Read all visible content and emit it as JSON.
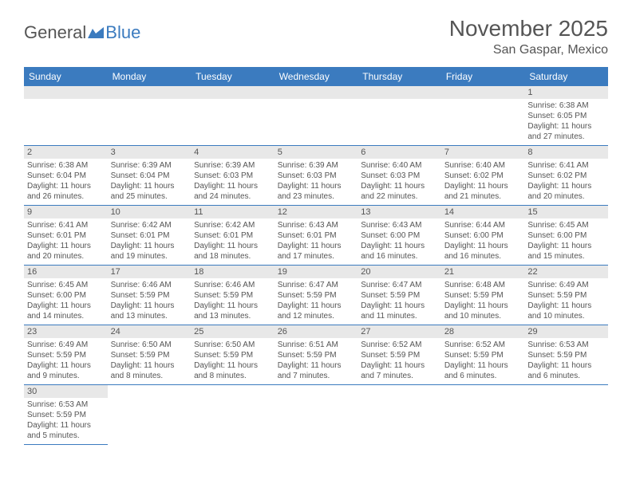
{
  "logo": {
    "part1": "General",
    "part2": "Blue"
  },
  "title": "November 2025",
  "location": "San Gaspar, Mexico",
  "colors": {
    "header_bg": "#3b7bbf",
    "header_text": "#ffffff",
    "daynum_bg": "#e8e8e8",
    "text": "#555555",
    "row_border": "#3b7bbf",
    "logo_gray": "#555555",
    "logo_blue": "#3b7bbf",
    "page_bg": "#ffffff"
  },
  "day_headers": [
    "Sunday",
    "Monday",
    "Tuesday",
    "Wednesday",
    "Thursday",
    "Friday",
    "Saturday"
  ],
  "weeks": [
    [
      {
        "blank": true
      },
      {
        "blank": true
      },
      {
        "blank": true
      },
      {
        "blank": true
      },
      {
        "blank": true
      },
      {
        "blank": true
      },
      {
        "num": "1",
        "sunrise": "Sunrise: 6:38 AM",
        "sunset": "Sunset: 6:05 PM",
        "daylight1": "Daylight: 11 hours",
        "daylight2": "and 27 minutes."
      }
    ],
    [
      {
        "num": "2",
        "sunrise": "Sunrise: 6:38 AM",
        "sunset": "Sunset: 6:04 PM",
        "daylight1": "Daylight: 11 hours",
        "daylight2": "and 26 minutes."
      },
      {
        "num": "3",
        "sunrise": "Sunrise: 6:39 AM",
        "sunset": "Sunset: 6:04 PM",
        "daylight1": "Daylight: 11 hours",
        "daylight2": "and 25 minutes."
      },
      {
        "num": "4",
        "sunrise": "Sunrise: 6:39 AM",
        "sunset": "Sunset: 6:03 PM",
        "daylight1": "Daylight: 11 hours",
        "daylight2": "and 24 minutes."
      },
      {
        "num": "5",
        "sunrise": "Sunrise: 6:39 AM",
        "sunset": "Sunset: 6:03 PM",
        "daylight1": "Daylight: 11 hours",
        "daylight2": "and 23 minutes."
      },
      {
        "num": "6",
        "sunrise": "Sunrise: 6:40 AM",
        "sunset": "Sunset: 6:03 PM",
        "daylight1": "Daylight: 11 hours",
        "daylight2": "and 22 minutes."
      },
      {
        "num": "7",
        "sunrise": "Sunrise: 6:40 AM",
        "sunset": "Sunset: 6:02 PM",
        "daylight1": "Daylight: 11 hours",
        "daylight2": "and 21 minutes."
      },
      {
        "num": "8",
        "sunrise": "Sunrise: 6:41 AM",
        "sunset": "Sunset: 6:02 PM",
        "daylight1": "Daylight: 11 hours",
        "daylight2": "and 20 minutes."
      }
    ],
    [
      {
        "num": "9",
        "sunrise": "Sunrise: 6:41 AM",
        "sunset": "Sunset: 6:01 PM",
        "daylight1": "Daylight: 11 hours",
        "daylight2": "and 20 minutes."
      },
      {
        "num": "10",
        "sunrise": "Sunrise: 6:42 AM",
        "sunset": "Sunset: 6:01 PM",
        "daylight1": "Daylight: 11 hours",
        "daylight2": "and 19 minutes."
      },
      {
        "num": "11",
        "sunrise": "Sunrise: 6:42 AM",
        "sunset": "Sunset: 6:01 PM",
        "daylight1": "Daylight: 11 hours",
        "daylight2": "and 18 minutes."
      },
      {
        "num": "12",
        "sunrise": "Sunrise: 6:43 AM",
        "sunset": "Sunset: 6:01 PM",
        "daylight1": "Daylight: 11 hours",
        "daylight2": "and 17 minutes."
      },
      {
        "num": "13",
        "sunrise": "Sunrise: 6:43 AM",
        "sunset": "Sunset: 6:00 PM",
        "daylight1": "Daylight: 11 hours",
        "daylight2": "and 16 minutes."
      },
      {
        "num": "14",
        "sunrise": "Sunrise: 6:44 AM",
        "sunset": "Sunset: 6:00 PM",
        "daylight1": "Daylight: 11 hours",
        "daylight2": "and 16 minutes."
      },
      {
        "num": "15",
        "sunrise": "Sunrise: 6:45 AM",
        "sunset": "Sunset: 6:00 PM",
        "daylight1": "Daylight: 11 hours",
        "daylight2": "and 15 minutes."
      }
    ],
    [
      {
        "num": "16",
        "sunrise": "Sunrise: 6:45 AM",
        "sunset": "Sunset: 6:00 PM",
        "daylight1": "Daylight: 11 hours",
        "daylight2": "and 14 minutes."
      },
      {
        "num": "17",
        "sunrise": "Sunrise: 6:46 AM",
        "sunset": "Sunset: 5:59 PM",
        "daylight1": "Daylight: 11 hours",
        "daylight2": "and 13 minutes."
      },
      {
        "num": "18",
        "sunrise": "Sunrise: 6:46 AM",
        "sunset": "Sunset: 5:59 PM",
        "daylight1": "Daylight: 11 hours",
        "daylight2": "and 13 minutes."
      },
      {
        "num": "19",
        "sunrise": "Sunrise: 6:47 AM",
        "sunset": "Sunset: 5:59 PM",
        "daylight1": "Daylight: 11 hours",
        "daylight2": "and 12 minutes."
      },
      {
        "num": "20",
        "sunrise": "Sunrise: 6:47 AM",
        "sunset": "Sunset: 5:59 PM",
        "daylight1": "Daylight: 11 hours",
        "daylight2": "and 11 minutes."
      },
      {
        "num": "21",
        "sunrise": "Sunrise: 6:48 AM",
        "sunset": "Sunset: 5:59 PM",
        "daylight1": "Daylight: 11 hours",
        "daylight2": "and 10 minutes."
      },
      {
        "num": "22",
        "sunrise": "Sunrise: 6:49 AM",
        "sunset": "Sunset: 5:59 PM",
        "daylight1": "Daylight: 11 hours",
        "daylight2": "and 10 minutes."
      }
    ],
    [
      {
        "num": "23",
        "sunrise": "Sunrise: 6:49 AM",
        "sunset": "Sunset: 5:59 PM",
        "daylight1": "Daylight: 11 hours",
        "daylight2": "and 9 minutes."
      },
      {
        "num": "24",
        "sunrise": "Sunrise: 6:50 AM",
        "sunset": "Sunset: 5:59 PM",
        "daylight1": "Daylight: 11 hours",
        "daylight2": "and 8 minutes."
      },
      {
        "num": "25",
        "sunrise": "Sunrise: 6:50 AM",
        "sunset": "Sunset: 5:59 PM",
        "daylight1": "Daylight: 11 hours",
        "daylight2": "and 8 minutes."
      },
      {
        "num": "26",
        "sunrise": "Sunrise: 6:51 AM",
        "sunset": "Sunset: 5:59 PM",
        "daylight1": "Daylight: 11 hours",
        "daylight2": "and 7 minutes."
      },
      {
        "num": "27",
        "sunrise": "Sunrise: 6:52 AM",
        "sunset": "Sunset: 5:59 PM",
        "daylight1": "Daylight: 11 hours",
        "daylight2": "and 7 minutes."
      },
      {
        "num": "28",
        "sunrise": "Sunrise: 6:52 AM",
        "sunset": "Sunset: 5:59 PM",
        "daylight1": "Daylight: 11 hours",
        "daylight2": "and 6 minutes."
      },
      {
        "num": "29",
        "sunrise": "Sunrise: 6:53 AM",
        "sunset": "Sunset: 5:59 PM",
        "daylight1": "Daylight: 11 hours",
        "daylight2": "and 6 minutes."
      }
    ],
    [
      {
        "num": "30",
        "sunrise": "Sunrise: 6:53 AM",
        "sunset": "Sunset: 5:59 PM",
        "daylight1": "Daylight: 11 hours",
        "daylight2": "and 5 minutes."
      },
      {
        "blank": true
      },
      {
        "blank": true
      },
      {
        "blank": true
      },
      {
        "blank": true
      },
      {
        "blank": true
      },
      {
        "blank": true
      }
    ]
  ]
}
